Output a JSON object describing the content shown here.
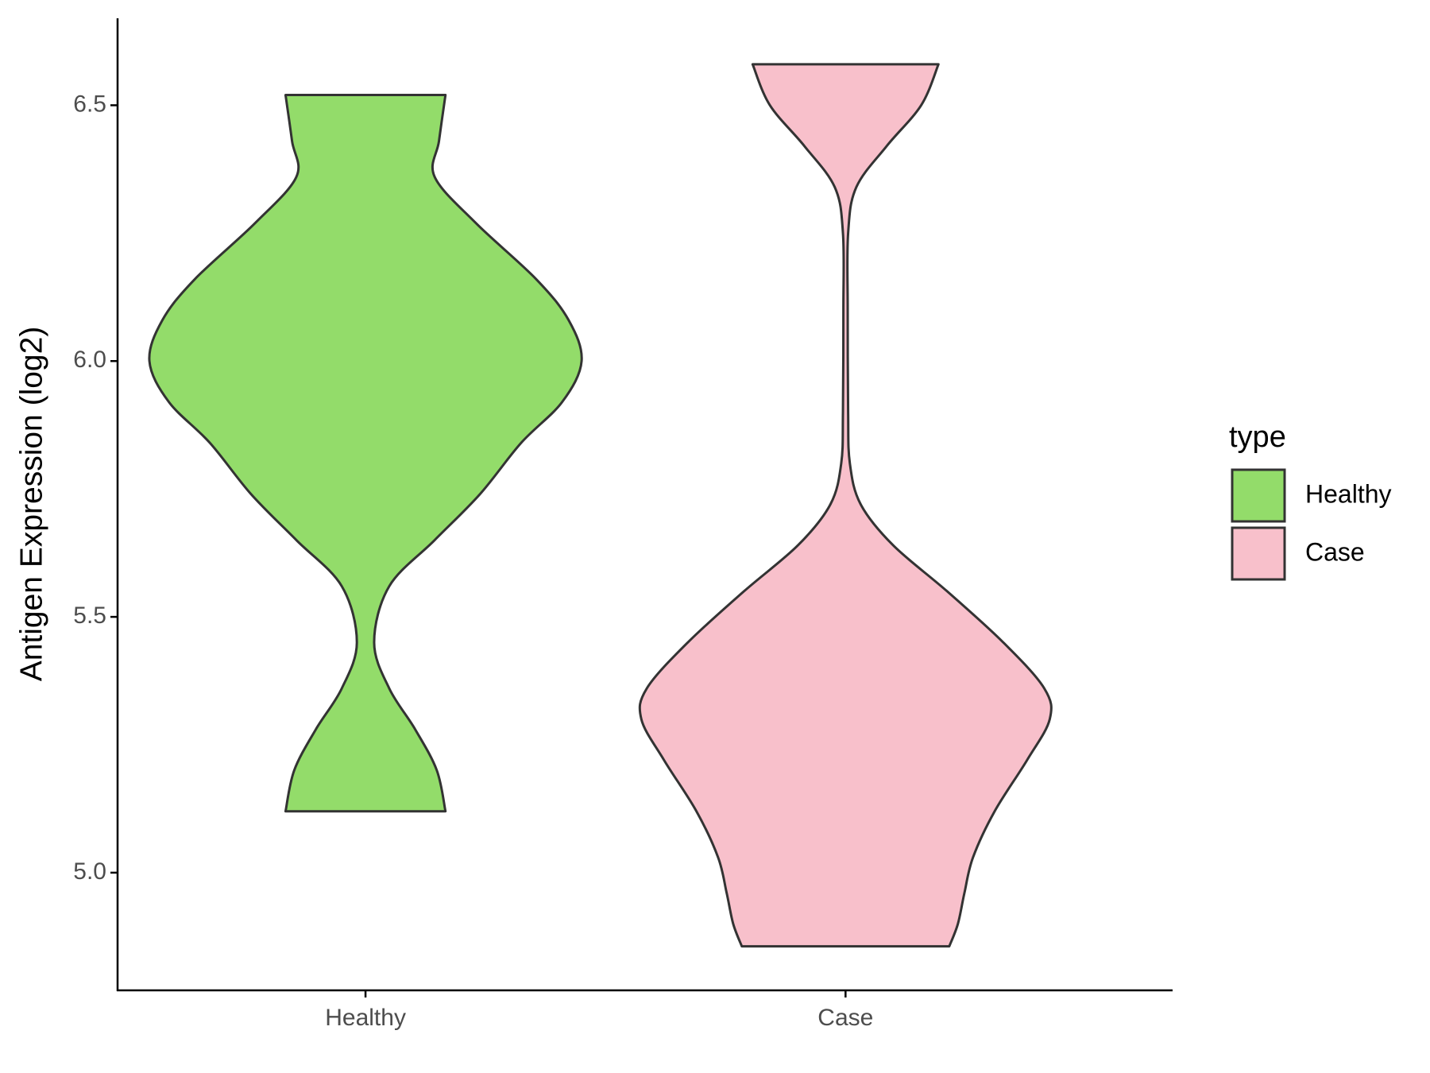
{
  "chart_data": {
    "type": "violin",
    "y_label": "Antigen Expression (log2)",
    "categories": [
      "Healthy",
      "Case"
    ],
    "legend_title": "type",
    "ylim": [
      4.77,
      6.67
    ],
    "yticks": [
      {
        "value": 5,
        "label": "5.0"
      },
      {
        "value": 5.5,
        "label": "5.5"
      },
      {
        "value": 6,
        "label": "6.0"
      },
      {
        "value": 6.5,
        "label": "6.5"
      }
    ],
    "series": [
      {
        "name": "Healthy",
        "color": "#93dc6a",
        "y": [
          6.52,
          6.43,
          6.36,
          6.27,
          6.16,
          6.08,
          6.0,
          5.92,
          5.84,
          5.74,
          5.65,
          5.56,
          5.45,
          5.36,
          5.28,
          5.2,
          5.12
        ],
        "density": [
          0.37,
          0.34,
          0.32,
          0.51,
          0.79,
          0.94,
          1,
          0.91,
          0.72,
          0.53,
          0.32,
          0.11,
          0.04,
          0.11,
          0.23,
          0.33,
          0.37
        ]
      },
      {
        "name": "Case",
        "color": "#f8c0cb",
        "y": [
          6.58,
          6.5,
          6.42,
          6.34,
          6.25,
          6.1,
          5.9,
          5.8,
          5.72,
          5.64,
          5.55,
          5.45,
          5.36,
          5.3,
          5.22,
          5.12,
          5.03,
          4.96,
          4.9,
          4.856
        ],
        "density": [
          0.43,
          0.35,
          0.19,
          0.05,
          0.012,
          0.01,
          0.012,
          0.02,
          0.07,
          0.22,
          0.47,
          0.73,
          0.92,
          0.945,
          0.84,
          0.69,
          0.59,
          0.55,
          0.52,
          0.48
        ]
      }
    ]
  }
}
